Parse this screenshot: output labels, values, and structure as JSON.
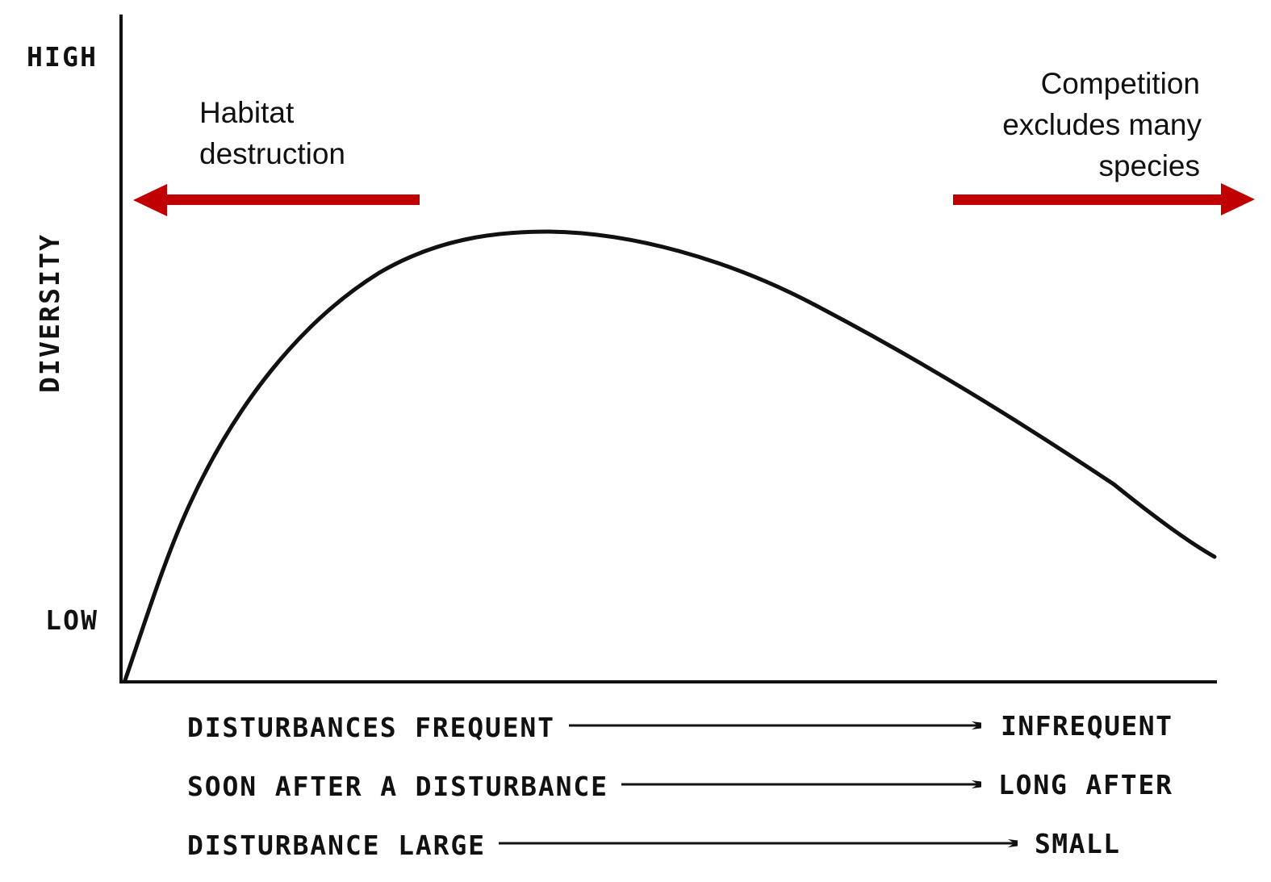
{
  "y_axis": {
    "label": "DIVERSITY",
    "high_label": "HIGH",
    "low_label": "LOW"
  },
  "annotations": {
    "left": {
      "lines": [
        "Habitat",
        "destruction"
      ]
    },
    "right": {
      "lines": [
        "Competition",
        "excludes many",
        "species"
      ]
    },
    "arrow_color": "#C00000"
  },
  "x_axis_rows": [
    {
      "from": "DISTURBANCES FREQUENT",
      "to": "INFREQUENT"
    },
    {
      "from": "SOON AFTER A DISTURBANCE",
      "to": "LONG AFTER"
    },
    {
      "from": "DISTURBANCE LARGE",
      "to": "SMALL"
    }
  ]
}
